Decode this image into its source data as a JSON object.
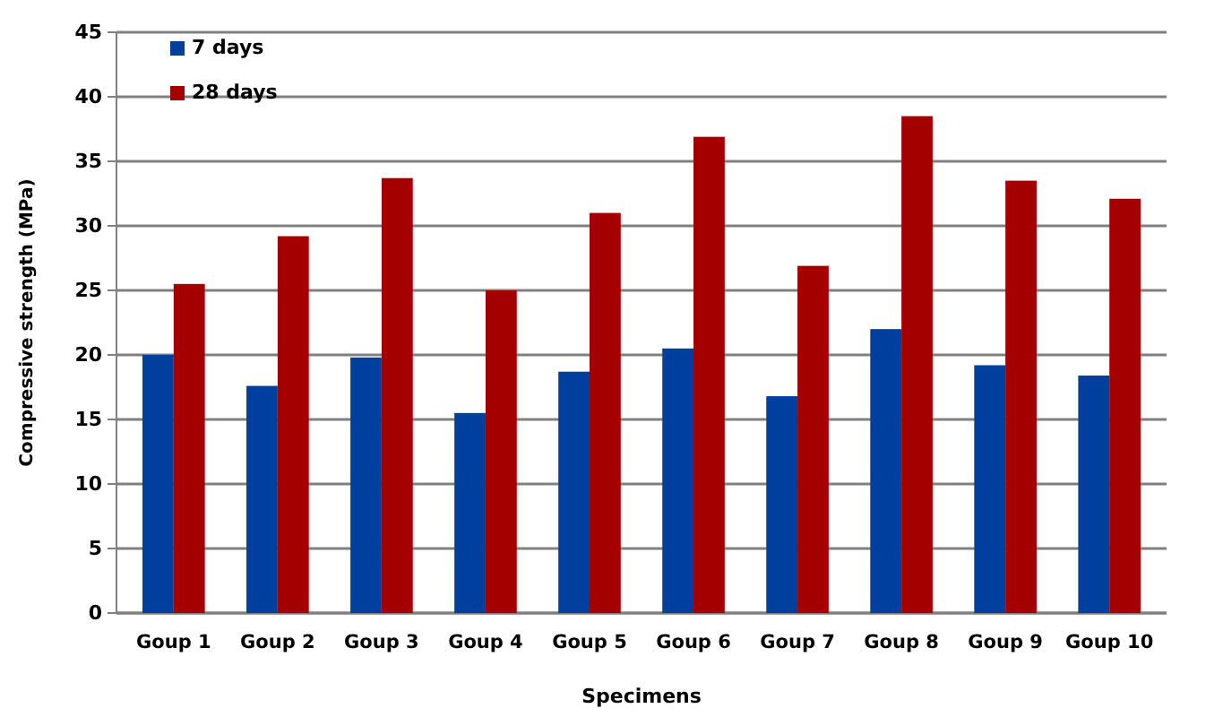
{
  "chart_data": {
    "type": "bar",
    "xlabel": "Specimens",
    "ylabel": "Compressive strength (MPa)",
    "categories": [
      "Goup 1",
      "Goup 2",
      "Goup 3",
      "Goup 4",
      "Goup 5",
      "Goup 6",
      "Goup 7",
      "Goup 8",
      "Goup 9",
      "Goup 10"
    ],
    "series": [
      {
        "name": "7 days",
        "color": "#003f9e",
        "values": [
          20.0,
          17.6,
          19.8,
          15.5,
          18.7,
          20.5,
          16.8,
          22.0,
          19.2,
          18.4
        ]
      },
      {
        "name": "28 days",
        "color": "#a50000",
        "values": [
          25.5,
          29.2,
          33.7,
          25.0,
          31.0,
          36.9,
          26.9,
          38.5,
          33.5,
          32.1
        ]
      }
    ],
    "ylim": [
      0,
      45
    ],
    "yticks": [
      0,
      5,
      10,
      15,
      20,
      25,
      30,
      35,
      40,
      45
    ],
    "grid": "y",
    "legend": "top left"
  }
}
